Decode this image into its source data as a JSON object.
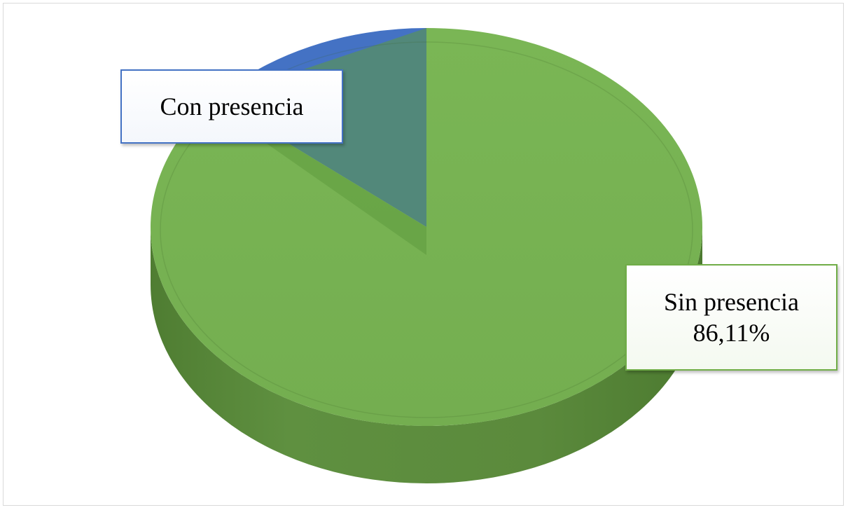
{
  "chart_data": {
    "type": "pie",
    "title": "",
    "slices": [
      {
        "label": "Con presencia",
        "value": 13.89,
        "value_label": "",
        "color": "#4472c4"
      },
      {
        "label": "Sin presencia",
        "value": 86.11,
        "value_label": "86,11%",
        "color": "#70ad47"
      }
    ],
    "style": "3d",
    "legend": "none"
  }
}
